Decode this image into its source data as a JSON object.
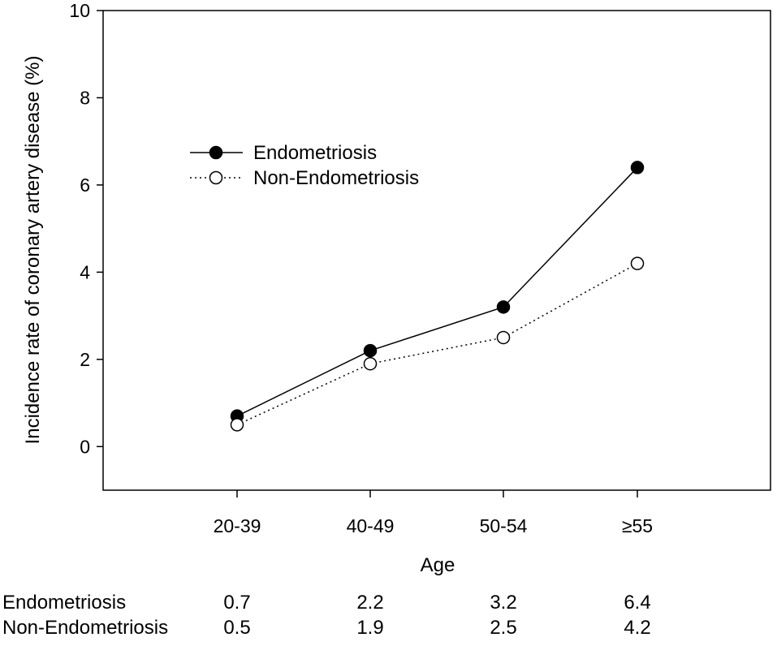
{
  "chart_data": {
    "type": "line",
    "title": "",
    "xlabel": "Age",
    "ylabel": "Incidence rate of coronary artery disease (%)",
    "categories": [
      "20-39",
      "40-49",
      "50-54",
      "≥55"
    ],
    "ylim": [
      -1,
      10
    ],
    "yticks": [
      0,
      2,
      4,
      6,
      8,
      10
    ],
    "grid": false,
    "legend_position": "upper-left",
    "series": [
      {
        "name": "Endometriosis",
        "marker": "filled-circle",
        "line": "solid",
        "values": [
          0.7,
          2.2,
          3.2,
          6.4
        ]
      },
      {
        "name": "Non-Endometriosis",
        "marker": "open-circle",
        "line": "dotted",
        "values": [
          0.5,
          1.9,
          2.5,
          4.2
        ]
      }
    ]
  },
  "table": {
    "rows": [
      {
        "label": "Endometriosis",
        "values": [
          "0.7",
          "2.2",
          "3.2",
          "6.4"
        ]
      },
      {
        "label": "Non-Endometriosis",
        "values": [
          "0.5",
          "1.9",
          "2.5",
          "4.2"
        ]
      }
    ]
  },
  "colors": {
    "ink": "#000000",
    "background": "#ffffff"
  }
}
